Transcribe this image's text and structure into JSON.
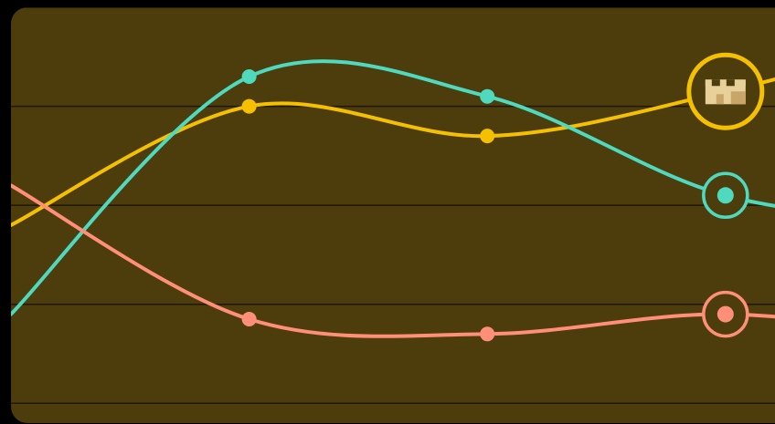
{
  "colors": {
    "background": "#000000",
    "panel": "#4d3d0c",
    "gridline": "#1e1703",
    "badge_icon_light": "#e8d09a",
    "badge_icon_dark": "#c9a56a"
  },
  "chart_data": {
    "type": "line",
    "title": "",
    "xlabel": "",
    "ylabel": "",
    "x": [
      0,
      1,
      2,
      3,
      4
    ],
    "xlim": [
      0,
      3.3
    ],
    "ylim": [
      0,
      4.2
    ],
    "grid": "horizontal",
    "gridlines": [
      0.2,
      1.2,
      2.2,
      3.2,
      4.2
    ],
    "legend": "none",
    "highlight_index": 3,
    "series": [
      {
        "color": "#f5c000",
        "values": [
          2.0,
          3.2,
          2.9,
          3.35,
          4.0
        ],
        "highlight_style": "badge",
        "highlight_icon": "castle-icon"
      },
      {
        "color": "#4fd9bf",
        "values": [
          1.1,
          3.5,
          3.3,
          2.3,
          2.0
        ],
        "highlight_style": "ring"
      },
      {
        "color": "#ff8f78",
        "values": [
          2.4,
          1.05,
          0.9,
          1.1,
          0.85
        ],
        "highlight_style": "ring"
      }
    ]
  }
}
